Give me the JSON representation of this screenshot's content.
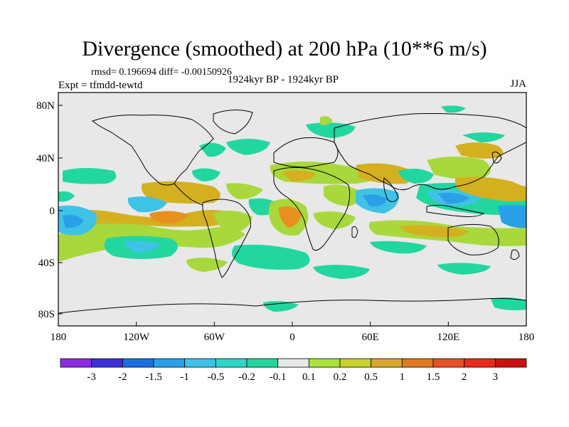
{
  "header": {
    "title": "Divergence (smoothed) at 200 hPa (10**6 m/s)",
    "stats": "rmsd= 0.196694 diff= -0.00150926",
    "experiment": "Expt = tfmdd-tewtd",
    "period": "1924kyr BP - 1924kyr BP",
    "season": "JJA"
  },
  "axes": {
    "x_ticks": [
      "180",
      "120W",
      "60W",
      "0",
      "60E",
      "120E",
      "180"
    ],
    "y_ticks": [
      "80N",
      "40N",
      "0",
      "40S",
      "80S"
    ]
  },
  "colorbar": {
    "labels": [
      "-3",
      "-2",
      "-1.5",
      "-1",
      "-0.5",
      "-0.2",
      "-0.1",
      "0.1",
      "0.2",
      "0.5",
      "1",
      "1.5",
      "2",
      "3"
    ],
    "colors": [
      "#8a2be2",
      "#3d2fd6",
      "#1b6fe0",
      "#2aa0e8",
      "#3ec3e6",
      "#2ed6c8",
      "#22d6a0",
      "#e8e8e8",
      "#a8e23a",
      "#c8d22c",
      "#d8a82a",
      "#e07a20",
      "#e85028",
      "#e82a1c",
      "#cc1010"
    ]
  },
  "map": {
    "background_color": "#e8e8e8",
    "positive_low_color": "#a8d83c",
    "positive_mid_color": "#d4b020",
    "positive_high_color": "#e8901e",
    "negative_low_color": "#22d6a0",
    "negative_mid_color": "#3ec3e6",
    "negative_high_color": "#2aa0e8"
  }
}
